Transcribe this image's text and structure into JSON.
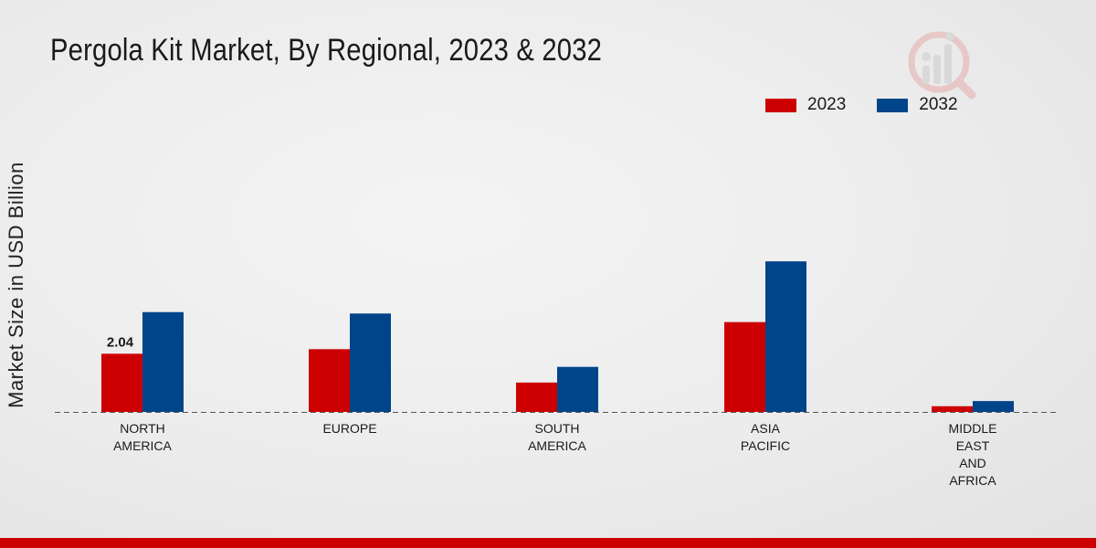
{
  "chart_data": {
    "type": "bar",
    "title": "Pergola Kit Market, By Regional, 2023 & 2032",
    "xlabel": "",
    "ylabel": "Market Size in USD Billion",
    "categories": [
      [
        "NORTH",
        "AMERICA"
      ],
      [
        "EUROPE"
      ],
      [
        "SOUTH",
        "AMERICA"
      ],
      [
        "ASIA",
        "PACIFIC"
      ],
      [
        "MIDDLE",
        "EAST",
        "AND",
        "AFRICA"
      ]
    ],
    "series": [
      {
        "name": "2023",
        "color": "#cc0000",
        "values": [
          2.04,
          2.2,
          1.03,
          3.15,
          0.2
        ]
      },
      {
        "name": "2032",
        "color": "#004489",
        "values": [
          3.5,
          3.45,
          1.58,
          5.28,
          0.38
        ]
      }
    ],
    "data_labels": [
      {
        "series": 0,
        "category": 0,
        "text": "2.04"
      }
    ],
    "ylim": [
      0,
      9
    ],
    "grid": false,
    "legend_position": "top-right"
  }
}
